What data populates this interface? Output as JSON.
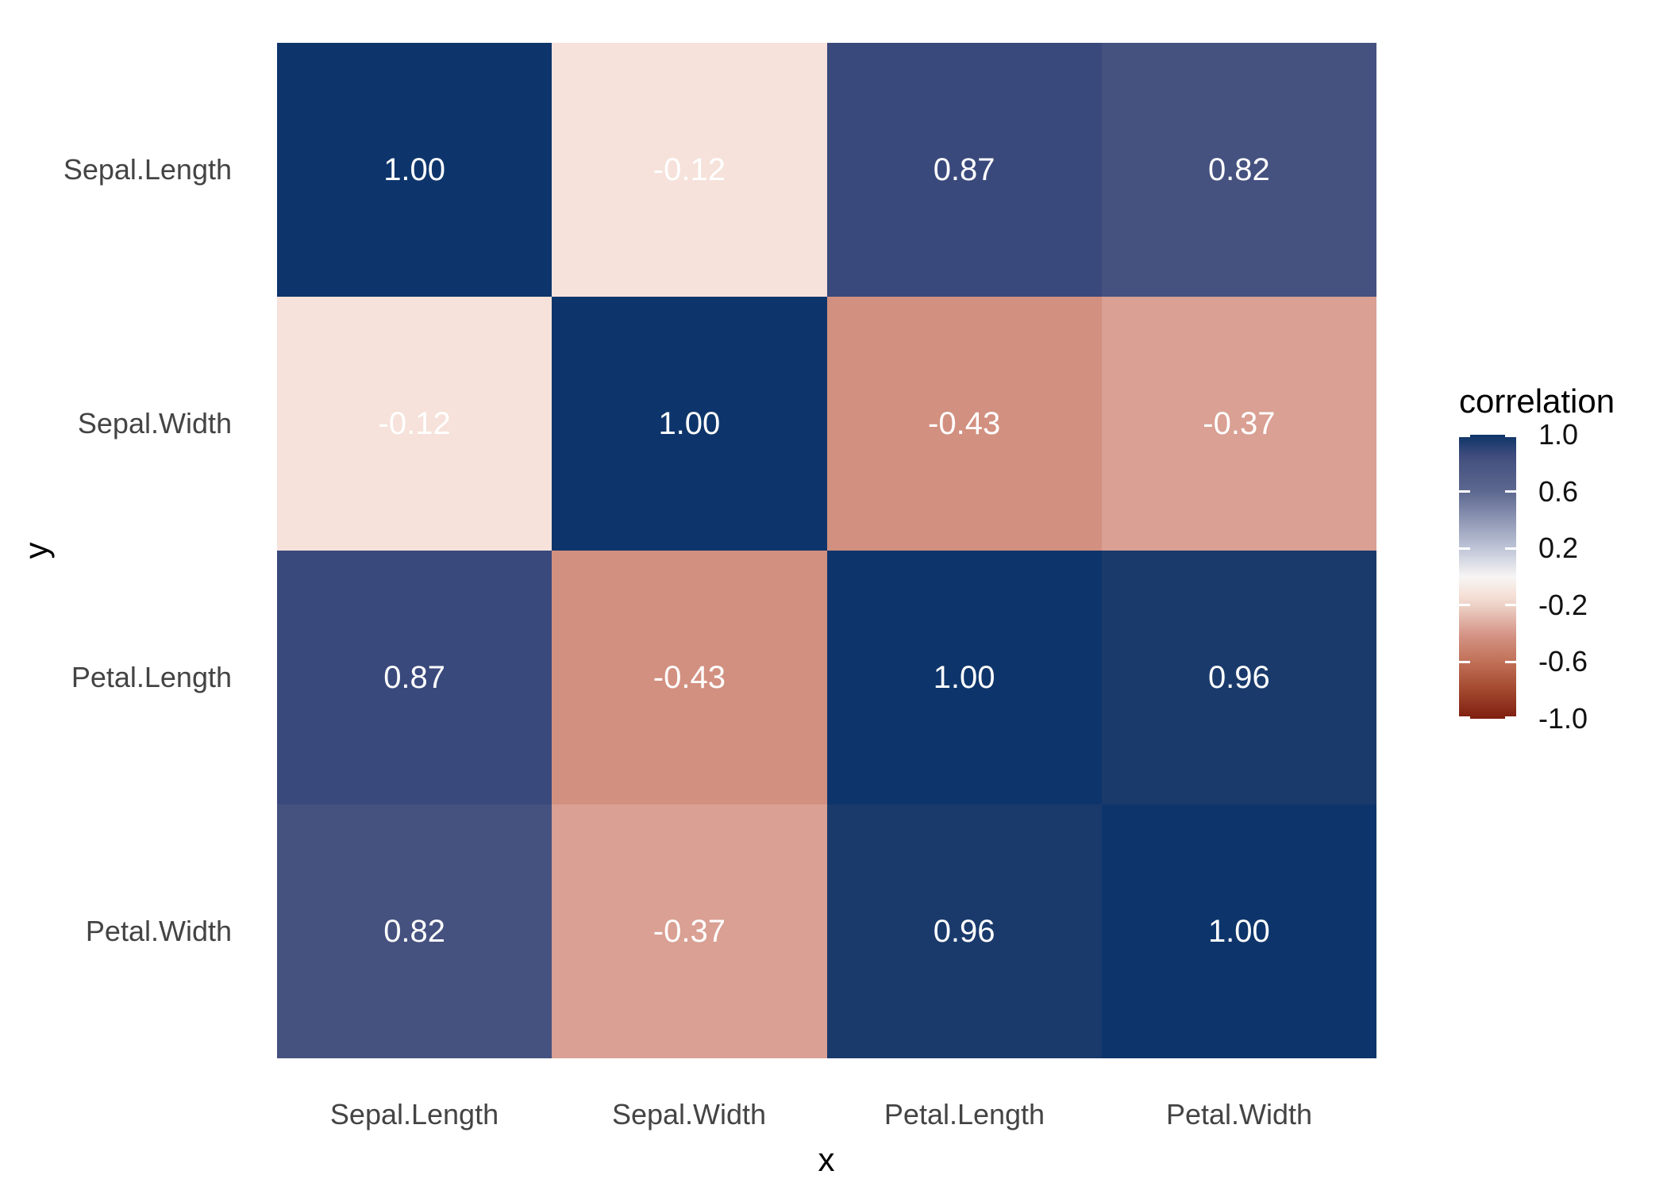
{
  "chart_data": {
    "type": "heatmap",
    "description": "Correlation heatmap of iris variables",
    "x_categories": [
      "Sepal.Length",
      "Sepal.Width",
      "Petal.Length",
      "Petal.Width"
    ],
    "y_categories": [
      "Sepal.Length",
      "Sepal.Width",
      "Petal.Length",
      "Petal.Width"
    ],
    "xlabel": "x",
    "ylabel": "y",
    "matrix": [
      [
        1.0,
        -0.12,
        0.87,
        0.82
      ],
      [
        -0.12,
        1.0,
        -0.43,
        -0.37
      ],
      [
        0.87,
        -0.43,
        1.0,
        0.96
      ],
      [
        0.82,
        -0.37,
        0.96,
        1.0
      ]
    ],
    "cell_label_decimals": 2,
    "legend": {
      "title": "correlation",
      "range": [
        -1.0,
        1.0
      ],
      "ticks": [
        1.0,
        0.6,
        0.2,
        -0.2,
        -0.6,
        -1.0
      ],
      "tick_labels": [
        "1.0",
        "0.6",
        "0.2",
        "-0.2",
        "-0.6",
        "-1.0"
      ]
    },
    "colormap_stops": [
      {
        "value": 1.0,
        "color": "#0e356b"
      },
      {
        "value": 0.96,
        "color": "#1a3a6c"
      },
      {
        "value": 0.87,
        "color": "#3a497c"
      },
      {
        "value": 0.82,
        "color": "#45517f"
      },
      {
        "value": 0.6,
        "color": "#5d6890"
      },
      {
        "value": 0.2,
        "color": "#bfc5d7"
      },
      {
        "value": 0.0,
        "color": "#f7f5f4"
      },
      {
        "value": -0.12,
        "color": "#f6e2da"
      },
      {
        "value": -0.2,
        "color": "#eed2c7"
      },
      {
        "value": -0.37,
        "color": "#d9a093"
      },
      {
        "value": -0.43,
        "color": "#d29080"
      },
      {
        "value": -0.6,
        "color": "#c07057"
      },
      {
        "value": -0.8,
        "color": "#a2482e"
      },
      {
        "value": -1.0,
        "color": "#7f1e10"
      }
    ],
    "colors": {
      "background": "#ffffff",
      "cell_text": "#ffffff",
      "axis_tick_text": "#444444",
      "axis_title_text": "#000000",
      "legend_text": "#111111",
      "legend_tick_mark": "#ffffff"
    }
  }
}
